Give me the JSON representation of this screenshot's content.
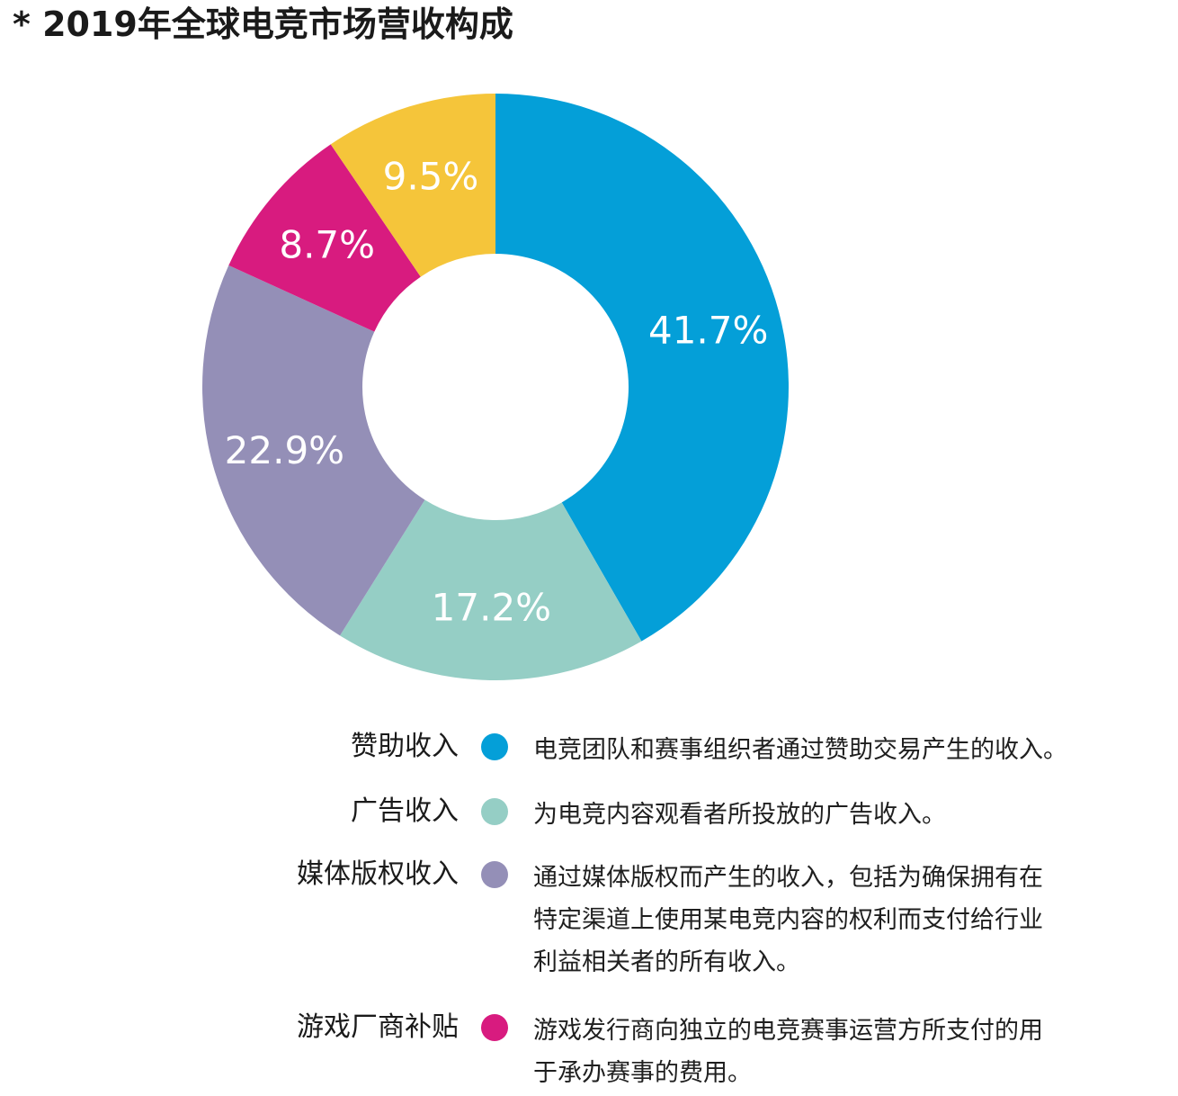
{
  "title": "* 2019年全球电竞市场营收构成",
  "chart_data": {
    "type": "pie",
    "title": "* 2019年全球电竞市场营收构成",
    "slices": [
      {
        "name": "赞助收入",
        "value": 41.7,
        "label": "41.7%",
        "color": "#049fd8"
      },
      {
        "name": "广告收入",
        "value": 17.2,
        "label": "17.2%",
        "color": "#95cec5"
      },
      {
        "name": "媒体版权收入",
        "value": 22.9,
        "label": "22.9%",
        "color": "#948fb7"
      },
      {
        "name": "游戏厂商补贴",
        "value": 8.7,
        "label": "8.7%",
        "color": "#d81b7f"
      },
      {
        "name": "",
        "value": 9.5,
        "label": "9.5%",
        "color": "#f5c53a"
      }
    ],
    "legend_placement": "bottom"
  },
  "legend": [
    {
      "name": "赞助收入",
      "color": "#049fd8",
      "desc": [
        "电竞团队和赛事组织者通过赞助交易产生的收入。"
      ]
    },
    {
      "name": "广告收入",
      "color": "#95cec5",
      "desc": [
        "为电竞内容观看者所投放的广告收入。"
      ]
    },
    {
      "name": "媒体版权收入",
      "color": "#948fb7",
      "desc": [
        "通过媒体版权而产生的收入，包括为确保拥有在",
        "特定渠道上使用某电竞内容的权利而支付给行业",
        "利益相关者的所有收入。"
      ]
    },
    {
      "name": "游戏厂商补贴",
      "color": "#d81b7f",
      "desc": [
        "游戏发行商向独立的电竞赛事运营方所支付的用",
        "于承办赛事的费用。"
      ]
    }
  ]
}
